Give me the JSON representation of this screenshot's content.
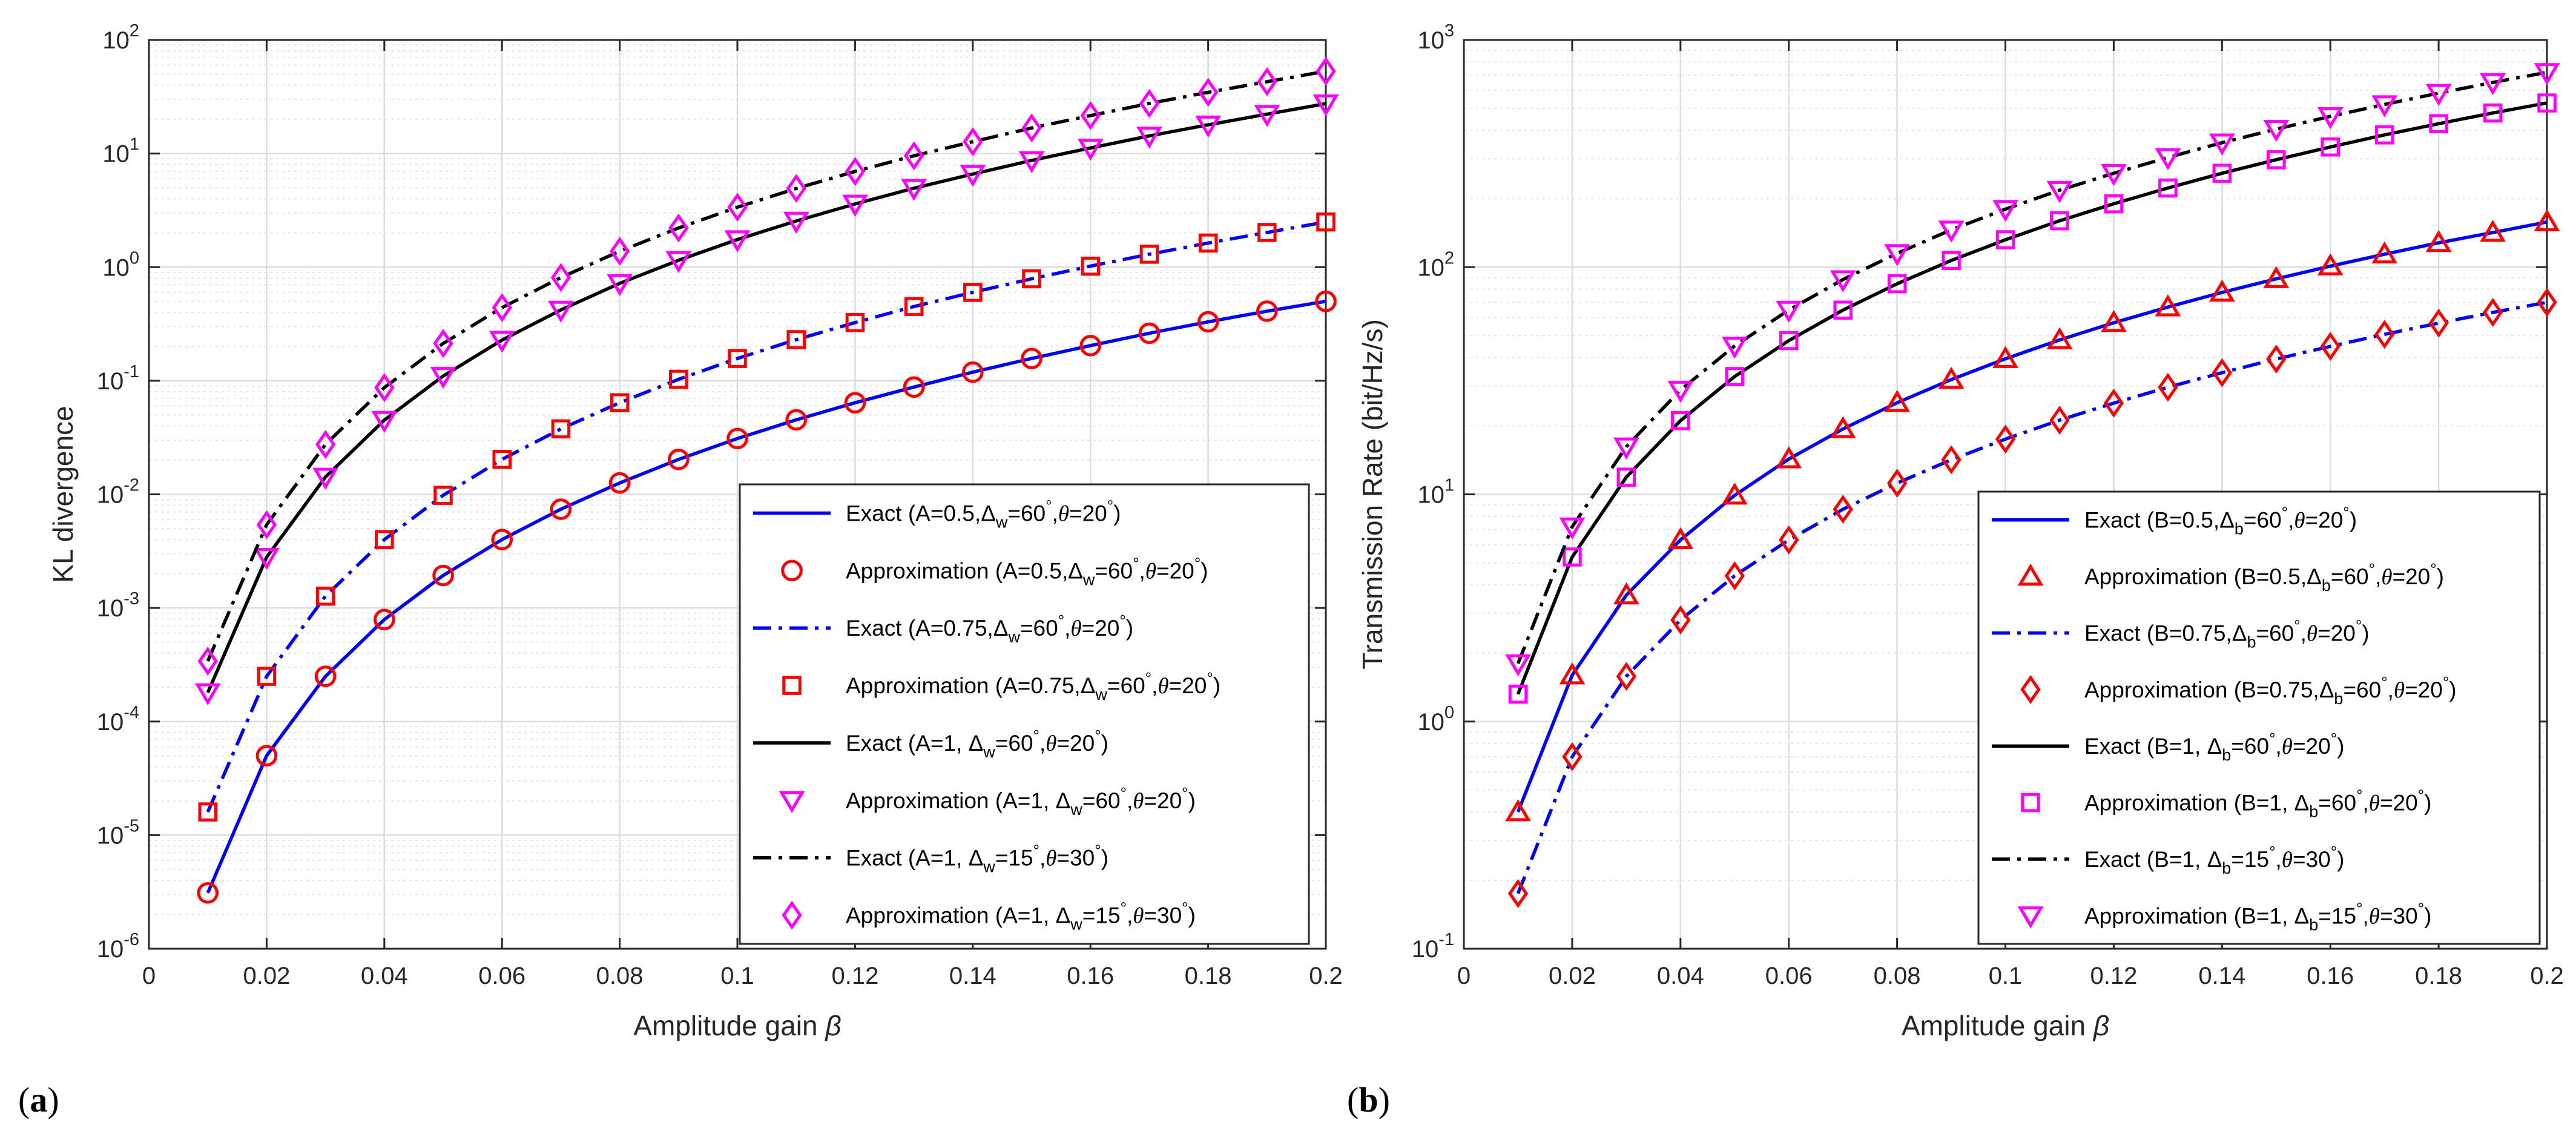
{
  "chart_data": [
    {
      "type": "line",
      "panel_label": "(a)",
      "xlabel": "Amplitude gain",
      "xlabel_symbol": "β",
      "ylabel": "KL divergence",
      "yscale": "log",
      "xlim": [
        0,
        0.2
      ],
      "ylim": [
        1e-06,
        100
      ],
      "x_ticks": [
        "0",
        "0.02",
        "0.04",
        "0.06",
        "0.08",
        "0.1",
        "0.12",
        "0.14",
        "0.16",
        "0.18",
        "0.2"
      ],
      "y_ticks": [
        {
          "base": "10",
          "exp": "-6"
        },
        {
          "base": "10",
          "exp": "-5"
        },
        {
          "base": "10",
          "exp": "-4"
        },
        {
          "base": "10",
          "exp": "-3"
        },
        {
          "base": "10",
          "exp": "-2"
        },
        {
          "base": "10",
          "exp": "-1"
        },
        {
          "base": "10",
          "exp": "0"
        },
        {
          "base": "10",
          "exp": "1"
        },
        {
          "base": "10",
          "exp": "2"
        }
      ],
      "grid": true,
      "legend_position": "bottom-right",
      "x": [
        0.01,
        0.02,
        0.03,
        0.04,
        0.05,
        0.06,
        0.07,
        0.08,
        0.09,
        0.1,
        0.11,
        0.12,
        0.13,
        0.14,
        0.15,
        0.16,
        0.17,
        0.18,
        0.19,
        0.2
      ],
      "series": [
        {
          "name": "Exact (A=0.5, Δw=60°, θ=20°)",
          "kind": "line",
          "style": "solid",
          "color": "#0000ff",
          "pair": "A=0.5",
          "values": [
            3.1e-06,
            5e-05,
            0.00025,
            0.00079,
            0.00193,
            0.004,
            0.0074,
            0.0126,
            0.0203,
            0.031,
            0.0453,
            0.064,
            0.088,
            0.119,
            0.157,
            0.204,
            0.262,
            0.33,
            0.41,
            0.5
          ]
        },
        {
          "name": "Approximation (A=0.5, Δw=60°, θ=20°)",
          "kind": "marker",
          "marker": "circle",
          "color": "#ff0000",
          "pair": "A=0.5",
          "values": [
            3.1e-06,
            5e-05,
            0.00025,
            0.00079,
            0.00193,
            0.004,
            0.0074,
            0.0126,
            0.0203,
            0.031,
            0.0453,
            0.064,
            0.088,
            0.119,
            0.157,
            0.204,
            0.262,
            0.33,
            0.41,
            0.5
          ]
        },
        {
          "name": "Exact (A=0.75, Δw=60°, θ=20°)",
          "kind": "line",
          "style": "dashdot",
          "color": "#0000ff",
          "pair": "A=0.75",
          "values": [
            1.6e-05,
            0.00025,
            0.00127,
            0.004,
            0.0098,
            0.0203,
            0.0377,
            0.064,
            0.103,
            0.157,
            0.23,
            0.325,
            0.45,
            0.6,
            0.79,
            1.02,
            1.3,
            1.63,
            2.02,
            2.5
          ]
        },
        {
          "name": "Approximation (A=0.75, Δw=60°, θ=20°)",
          "kind": "marker",
          "marker": "square",
          "color": "#ff0000",
          "pair": "A=0.75",
          "values": [
            1.6e-05,
            0.00025,
            0.00127,
            0.004,
            0.0098,
            0.0203,
            0.0377,
            0.064,
            0.103,
            0.157,
            0.23,
            0.325,
            0.45,
            0.6,
            0.79,
            1.02,
            1.3,
            1.63,
            2.02,
            2.5
          ]
        },
        {
          "name": "Exact (A=1, Δw=60°, θ=20°)",
          "kind": "line",
          "style": "solid",
          "color": "#000000",
          "pair": "A=1a",
          "values": [
            0.00018,
            0.0028,
            0.0142,
            0.045,
            0.11,
            0.228,
            0.42,
            0.72,
            1.15,
            1.75,
            2.55,
            3.6,
            4.95,
            6.6,
            8.7,
            11.2,
            14.3,
            17.9,
            22.2,
            27.5
          ]
        },
        {
          "name": "Approximation (A=1, Δw=60°, θ=20°)",
          "kind": "marker",
          "marker": "triangle-down",
          "color": "#ff00ff",
          "pair": "A=1a",
          "values": [
            0.00018,
            0.0028,
            0.0142,
            0.045,
            0.11,
            0.228,
            0.42,
            0.72,
            1.15,
            1.75,
            2.55,
            3.6,
            4.95,
            6.6,
            8.7,
            11.2,
            14.3,
            17.9,
            22.2,
            27.5
          ]
        },
        {
          "name": "Exact (A=1, Δw=15°, θ=30°)",
          "kind": "line",
          "style": "dashdot",
          "color": "#000000",
          "pair": "A=1b",
          "values": [
            0.00034,
            0.0054,
            0.0275,
            0.087,
            0.213,
            0.44,
            0.81,
            1.38,
            2.21,
            3.37,
            4.93,
            6.96,
            9.55,
            12.7,
            16.8,
            21.6,
            27.6,
            34.6,
            42.9,
            53
          ]
        },
        {
          "name": "Approximation (A=1, Δw=15°, θ=30°)",
          "kind": "marker",
          "marker": "diamond",
          "color": "#ff00ff",
          "pair": "A=1b",
          "values": [
            0.00034,
            0.0054,
            0.0275,
            0.087,
            0.213,
            0.44,
            0.81,
            1.38,
            2.21,
            3.37,
            4.93,
            6.96,
            9.55,
            12.7,
            16.8,
            21.6,
            27.6,
            34.6,
            42.9,
            53
          ]
        }
      ],
      "legend": [
        {
          "kind": "line",
          "style": "solid",
          "color": "#0000ff",
          "label": "Exact (A=0.5,",
          "sym": "Δ",
          "sub": "w",
          "rest": "=60",
          "deg": "°",
          "th_pre": ",",
          "th": "θ",
          "th_val": "=20",
          "deg2": "°",
          "close": ")"
        },
        {
          "kind": "marker",
          "marker": "circle",
          "color": "#ff0000",
          "label": "Approximation (A=0.5,",
          "sym": "Δ",
          "sub": "w",
          "rest": "=60",
          "deg": "°",
          "th_pre": ",",
          "th": "θ",
          "th_val": "=20",
          "deg2": "°",
          "close": ")"
        },
        {
          "kind": "line",
          "style": "dashdot",
          "color": "#0000ff",
          "label": "Exact (A=0.75,",
          "sym": "Δ",
          "sub": "w",
          "rest": "=60",
          "deg": "°",
          "th_pre": ",",
          "th": "θ",
          "th_val": "=20",
          "deg2": "°",
          "close": ")"
        },
        {
          "kind": "marker",
          "marker": "square",
          "color": "#ff0000",
          "label": "Approximation (A=0.75,",
          "sym": "Δ",
          "sub": "w",
          "rest": "=60",
          "deg": "°",
          "th_pre": ",",
          "th": "θ",
          "th_val": "=20",
          "deg2": "°",
          "close": ")"
        },
        {
          "kind": "line",
          "style": "solid",
          "color": "#000000",
          "label": "Exact (A=1, ",
          "sym": "Δ",
          "sub": "w",
          "rest": "=60",
          "deg": "°",
          "th_pre": ",",
          "th": "θ",
          "th_val": "=20",
          "deg2": "°",
          "close": ")"
        },
        {
          "kind": "marker",
          "marker": "triangle-down",
          "color": "#ff00ff",
          "label": "Approximation (A=1, ",
          "sym": "Δ",
          "sub": "w",
          "rest": "=60",
          "deg": "°",
          "th_pre": ",",
          "th": "θ",
          "th_val": "=20",
          "deg2": "°",
          "close": ")"
        },
        {
          "kind": "line",
          "style": "dashdot",
          "color": "#000000",
          "label": "Exact (A=1, ",
          "sym": "Δ",
          "sub": "w",
          "rest": "=15",
          "deg": "°",
          "th_pre": ",",
          "th": "θ",
          "th_val": "=30",
          "deg2": "°",
          "close": ")"
        },
        {
          "kind": "marker",
          "marker": "diamond",
          "color": "#ff00ff",
          "label": "Approximation (A=1, ",
          "sym": "Δ",
          "sub": "w",
          "rest": "=15",
          "deg": "°",
          "th_pre": ",",
          "th": "θ",
          "th_val": "=30",
          "deg2": "°",
          "close": ")"
        }
      ]
    },
    {
      "type": "line",
      "panel_label": "(b)",
      "xlabel": "Amplitude gain",
      "xlabel_symbol": "β",
      "ylabel": "Transmission Rate (bit/Hz/s)",
      "yscale": "log",
      "xlim": [
        0,
        0.2
      ],
      "ylim": [
        0.1,
        1000
      ],
      "x_ticks": [
        "0",
        "0.02",
        "0.04",
        "0.06",
        "0.08",
        "0.1",
        "0.12",
        "0.14",
        "0.16",
        "0.18",
        "0.2"
      ],
      "y_ticks": [
        {
          "base": "10",
          "exp": "-1"
        },
        {
          "base": "10",
          "exp": "0"
        },
        {
          "base": "10",
          "exp": "1"
        },
        {
          "base": "10",
          "exp": "2"
        },
        {
          "base": "10",
          "exp": "3"
        }
      ],
      "grid": true,
      "legend_position": "bottom-right",
      "x": [
        0.01,
        0.02,
        0.03,
        0.04,
        0.05,
        0.06,
        0.07,
        0.08,
        0.09,
        0.1,
        0.11,
        0.12,
        0.13,
        0.14,
        0.15,
        0.16,
        0.17,
        0.18,
        0.19,
        0.2
      ],
      "series": [
        {
          "name": "Exact (B=0.5, Δb=60°, θ=20°)",
          "kind": "line",
          "style": "solid",
          "color": "#0000ff",
          "pair": "B=0.5",
          "values": [
            0.4,
            1.6,
            3.6,
            6.3,
            9.9,
            14.3,
            19.4,
            25.3,
            32,
            39.5,
            47.8,
            56.9,
            66.7,
            77.4,
            88.8,
            101,
            114,
            128,
            142,
            158
          ]
        },
        {
          "name": "Approximation (B=0.5, Δb=60°, θ=20°)",
          "kind": "marker",
          "marker": "triangle-up",
          "color": "#ff0000",
          "pair": "B=0.5",
          "values": [
            0.4,
            1.6,
            3.6,
            6.3,
            9.9,
            14.3,
            19.4,
            25.3,
            32,
            39.5,
            47.8,
            56.9,
            66.7,
            77.4,
            88.8,
            101,
            114,
            128,
            142,
            158
          ]
        },
        {
          "name": "Exact (B=0.75, Δb=60°, θ=20°)",
          "kind": "line",
          "style": "dashdot",
          "color": "#0000ff",
          "pair": "B=0.75",
          "values": [
            0.175,
            0.7,
            1.58,
            2.8,
            4.38,
            6.3,
            8.6,
            11.2,
            14.2,
            17.5,
            21.2,
            25.2,
            29.6,
            34.3,
            39.4,
            44.8,
            50.6,
            56.7,
            63.2,
            70
          ]
        },
        {
          "name": "Approximation (B=0.75, Δb=60°, θ=20°)",
          "kind": "marker",
          "marker": "diamond",
          "color": "#ff0000",
          "pair": "B=0.75",
          "values": [
            0.175,
            0.7,
            1.58,
            2.8,
            4.38,
            6.3,
            8.6,
            11.2,
            14.2,
            17.5,
            21.2,
            25.2,
            29.6,
            34.3,
            39.4,
            44.8,
            50.6,
            56.7,
            63.2,
            70
          ]
        },
        {
          "name": "Exact (B=1, Δb=60°, θ=20°)",
          "kind": "line",
          "style": "solid",
          "color": "#000000",
          "pair": "B=1a",
          "values": [
            1.32,
            5.3,
            11.9,
            21.1,
            33,
            47.5,
            64.7,
            84.5,
            107,
            132,
            160,
            190,
            223,
            259,
            297,
            338,
            382,
            428,
            477,
            528
          ]
        },
        {
          "name": "Approximation (B=1, Δb=60°, θ=20°)",
          "kind": "marker",
          "marker": "square",
          "color": "#ff00ff",
          "pair": "B=1a",
          "values": [
            1.32,
            5.3,
            11.9,
            21.1,
            33,
            47.5,
            64.7,
            84.5,
            107,
            132,
            160,
            190,
            223,
            259,
            297,
            338,
            382,
            428,
            477,
            528
          ]
        },
        {
          "name": "Exact (B=1, Δb=15°, θ=30°)",
          "kind": "line",
          "style": "dashdot",
          "color": "#000000",
          "pair": "B=1b",
          "values": [
            1.8,
            7.2,
            16.2,
            28.8,
            45,
            64.8,
            88.2,
            115,
            146,
            180,
            218,
            259,
            304,
            353,
            405,
            461,
            520,
            583,
            650,
            720
          ]
        },
        {
          "name": "Approximation (B=1, Δb=15°, θ=30°)",
          "kind": "marker",
          "marker": "triangle-down",
          "color": "#ff00ff",
          "pair": "B=1b",
          "values": [
            1.8,
            7.2,
            16.2,
            28.8,
            45,
            64.8,
            88.2,
            115,
            146,
            180,
            218,
            259,
            304,
            353,
            405,
            461,
            520,
            583,
            650,
            720
          ]
        }
      ],
      "legend": [
        {
          "kind": "line",
          "style": "solid",
          "color": "#0000ff",
          "label": "Exact (B=0.5,",
          "sym": "Δ",
          "sub": "b",
          "rest": "=60",
          "deg": "°",
          "th_pre": ",",
          "th": "θ",
          "th_val": "=20",
          "deg2": "°",
          "close": ")"
        },
        {
          "kind": "marker",
          "marker": "triangle-up",
          "color": "#ff0000",
          "label": "Approximation (B=0.5,",
          "sym": "Δ",
          "sub": "b",
          "rest": "=60",
          "deg": "°",
          "th_pre": ",",
          "th": "θ",
          "th_val": "=20",
          "deg2": "°",
          "close": ")"
        },
        {
          "kind": "line",
          "style": "dashdot",
          "color": "#0000ff",
          "label": "Exact (B=0.75,",
          "sym": "Δ",
          "sub": "b",
          "rest": "=60",
          "deg": "°",
          "th_pre": ",",
          "th": "θ",
          "th_val": "=20",
          "deg2": "°",
          "close": ")"
        },
        {
          "kind": "marker",
          "marker": "diamond",
          "color": "#ff0000",
          "label": "Approximation (B=0.75,",
          "sym": "Δ",
          "sub": "b",
          "rest": "=60",
          "deg": "°",
          "th_pre": ",",
          "th": "θ",
          "th_val": "=20",
          "deg2": "°",
          "close": ")"
        },
        {
          "kind": "line",
          "style": "solid",
          "color": "#000000",
          "label": "Exact (B=1, ",
          "sym": "Δ",
          "sub": "b",
          "rest": "=60",
          "deg": "°",
          "th_pre": ",",
          "th": "θ",
          "th_val": "=20",
          "deg2": "°",
          "close": ")"
        },
        {
          "kind": "marker",
          "marker": "square",
          "color": "#ff00ff",
          "label": "Approximation (B=1, ",
          "sym": "Δ",
          "sub": "b",
          "rest": "=60",
          "deg": "°",
          "th_pre": ",",
          "th": "θ",
          "th_val": "=20",
          "deg2": "°",
          "close": ")"
        },
        {
          "kind": "line",
          "style": "dashdot",
          "color": "#000000",
          "label": "Exact (B=1, ",
          "sym": "Δ",
          "sub": "b",
          "rest": "=15",
          "deg": "°",
          "th_pre": ",",
          "th": "θ",
          "th_val": "=30",
          "deg2": "°",
          "close": ")"
        },
        {
          "kind": "marker",
          "marker": "triangle-down",
          "color": "#ff00ff",
          "label": "Approximation (B=1, ",
          "sym": "Δ",
          "sub": "b",
          "rest": "=15",
          "deg": "°",
          "th_pre": ",",
          "th": "θ",
          "th_val": "=30",
          "deg2": "°",
          "close": ")"
        }
      ]
    }
  ]
}
